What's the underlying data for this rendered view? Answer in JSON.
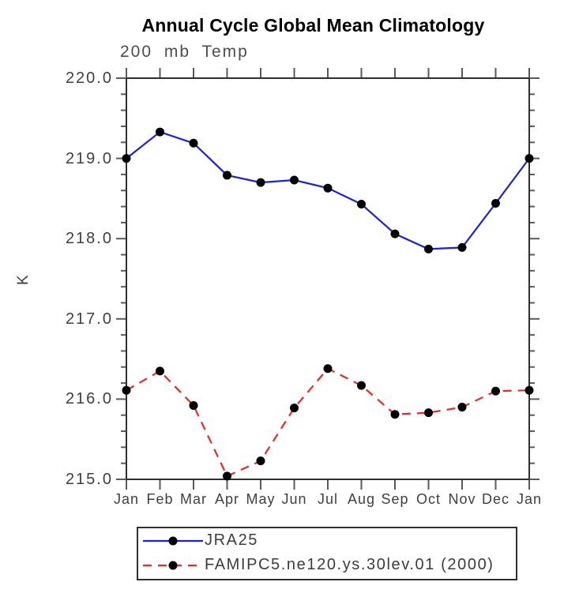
{
  "chart_data": {
    "type": "line",
    "title": "Annual Cycle Global Mean Climatology",
    "subtitle": "200 mb Temp",
    "ylabel": "K",
    "xlabel": "",
    "x_categories": [
      "Jan",
      "Feb",
      "Mar",
      "Apr",
      "May",
      "Jun",
      "Jul",
      "Aug",
      "Sep",
      "Oct",
      "Nov",
      "Dec",
      "Jan"
    ],
    "ylim": [
      215.0,
      220.0
    ],
    "y_tick_labels": [
      "220.0",
      "219.0",
      "218.0",
      "217.0",
      "216.0",
      "215.0"
    ],
    "y_major_ticks": [
      220.0,
      219.0,
      218.0,
      217.0,
      216.0,
      215.0
    ],
    "y_minor_interval": 0.2,
    "grid": false,
    "legend_position": "bottom-left-box",
    "series": [
      {
        "name": "JRA25",
        "color": "#1c1cef",
        "style": "solid",
        "marker": "black-circle",
        "values": [
          219.0,
          219.33,
          219.19,
          218.79,
          218.7,
          218.73,
          218.63,
          218.43,
          218.06,
          217.87,
          217.89,
          218.44,
          219.0
        ]
      },
      {
        "name": "FAMIPC5.ne120.ys.30lev.01 (2000)",
        "color": "#f02626",
        "style": "dashed",
        "marker": "black-circle",
        "values": [
          216.11,
          216.35,
          215.92,
          215.04,
          215.23,
          215.89,
          216.38,
          216.17,
          215.81,
          215.83,
          215.9,
          216.1,
          216.11
        ]
      }
    ],
    "colors": {
      "axis_box": "#2f2f2f",
      "ticks": "#5a5a5a",
      "marker": "#000000",
      "title": "#000000",
      "subtitle": "#4d4d4d",
      "tick_labels": "#3f3f3f"
    }
  }
}
